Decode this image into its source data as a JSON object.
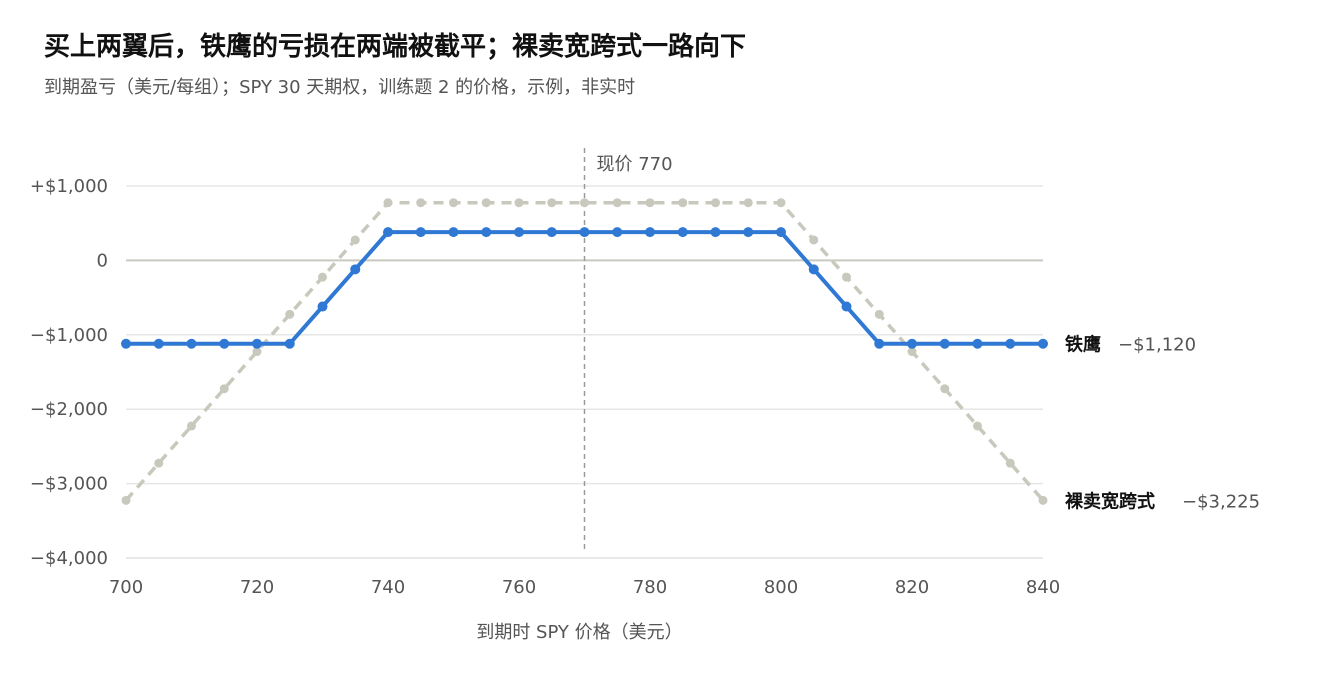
{
  "title": "买上两翼后，铁鹰的亏损在两端被截平；裸卖宽跨式一路向下",
  "subtitle": "到期盈亏（美元/每组）；SPY 30 天期权，训练题 2 的价格，示例，非实时",
  "colors": {
    "iron_condor": "#2f78d4",
    "short_strangle": "#c9c8bd",
    "grid": "#e6e6e6",
    "zero_line": "#c9c9c0",
    "spot_line": "#999999",
    "tick_text": "#555555"
  },
  "chart_data": {
    "type": "line",
    "xlabel": "到期时 SPY 价格（美元）",
    "ylabel": "",
    "xlim": [
      700,
      840
    ],
    "ylim": [
      -4000,
      1000
    ],
    "x_ticks": [
      700,
      720,
      740,
      760,
      780,
      800,
      820,
      840
    ],
    "x_tick_labels": [
      "700",
      "720",
      "740",
      "760",
      "780",
      "800",
      "820",
      "840"
    ],
    "y_ticks": [
      1000,
      0,
      -1000,
      -2000,
      -3000,
      -4000
    ],
    "y_tick_labels": [
      "+$1,000",
      "0",
      "−$1,000",
      "−$2,000",
      "−$3,000",
      "−$4,000"
    ],
    "grid": true,
    "legend": "direct-labels-right",
    "spot": {
      "x": 770,
      "label": "现价 770"
    },
    "x": [
      700,
      705,
      710,
      715,
      720,
      725,
      730,
      735,
      740,
      745,
      750,
      755,
      760,
      765,
      770,
      775,
      780,
      785,
      790,
      795,
      800,
      805,
      810,
      815,
      820,
      825,
      830,
      835,
      840
    ],
    "series": [
      {
        "name": "铁鹰",
        "end_label": "−$1,120",
        "style": "solid",
        "values": [
          -1120,
          -1120,
          -1120,
          -1120,
          -1120,
          -1120,
          -620,
          -120,
          380,
          380,
          380,
          380,
          380,
          380,
          380,
          380,
          380,
          380,
          380,
          380,
          380,
          -120,
          -620,
          -1120,
          -1120,
          -1120,
          -1120,
          -1120,
          -1120
        ]
      },
      {
        "name": "裸卖宽跨式",
        "end_label": "−$3,225",
        "style": "dashed",
        "values": [
          -3225,
          -2725,
          -2225,
          -1725,
          -1225,
          -725,
          -225,
          275,
          775,
          775,
          775,
          775,
          775,
          775,
          775,
          775,
          775,
          775,
          775,
          775,
          775,
          275,
          -225,
          -725,
          -1225,
          -1725,
          -2225,
          -2725,
          -3225
        ]
      }
    ]
  }
}
